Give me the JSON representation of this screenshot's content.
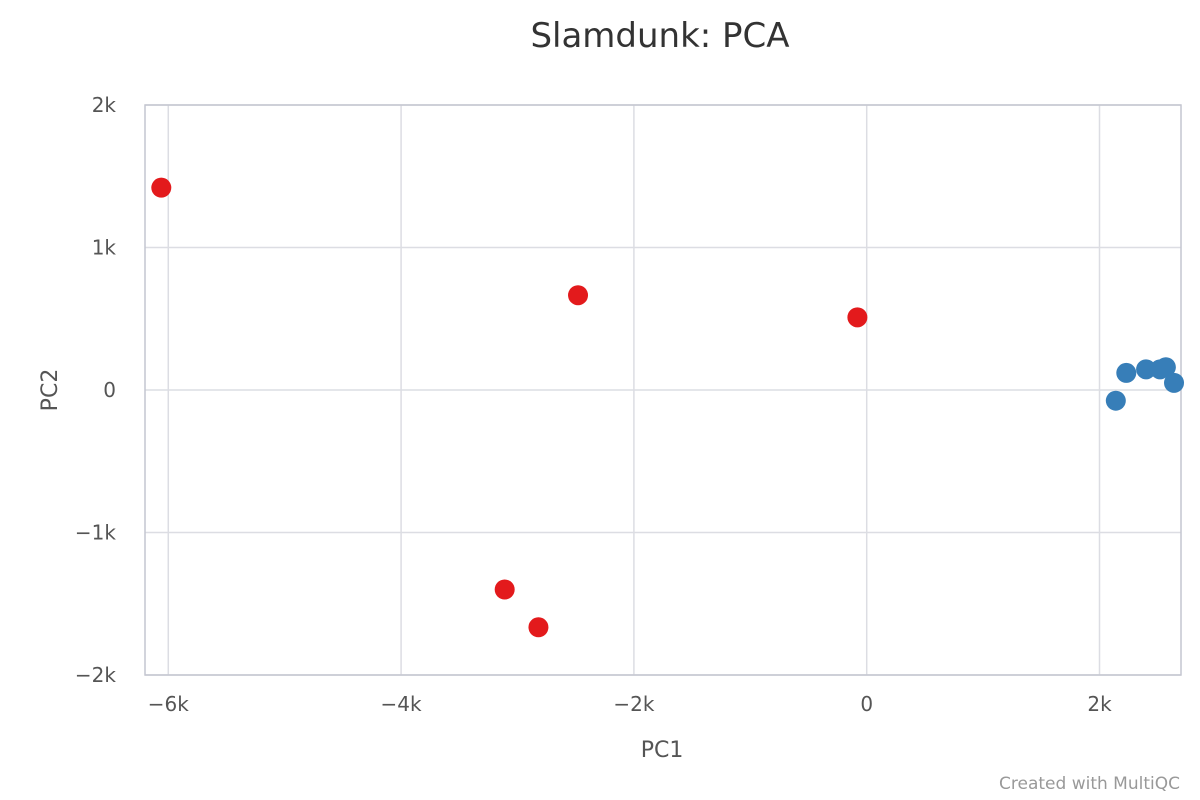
{
  "chart_data": {
    "type": "scatter",
    "title": "Slamdunk: PCA",
    "xlabel": "PC1",
    "ylabel": "PC2",
    "xlim": [
      -6200,
      2700
    ],
    "ylim": [
      -2000,
      2000
    ],
    "grid": true,
    "x_ticks": [
      {
        "value": -6000,
        "label": "−6k"
      },
      {
        "value": -4000,
        "label": "−4k"
      },
      {
        "value": -2000,
        "label": "−2k"
      },
      {
        "value": 0,
        "label": "0"
      },
      {
        "value": 2000,
        "label": "2k"
      }
    ],
    "y_ticks": [
      {
        "value": 2000,
        "label": "2k"
      },
      {
        "value": 1000,
        "label": "1k"
      },
      {
        "value": 0,
        "label": "0"
      },
      {
        "value": -1000,
        "label": "−1k"
      },
      {
        "value": -2000,
        "label": "−2k"
      }
    ],
    "series": [
      {
        "color": "#e31a1c",
        "points": [
          {
            "x": -6060,
            "y": 1420
          },
          {
            "x": -2480,
            "y": 665
          },
          {
            "x": -80,
            "y": 510
          },
          {
            "x": -3110,
            "y": -1400
          },
          {
            "x": -2820,
            "y": -1665
          }
        ]
      },
      {
        "color": "#377eb8",
        "points": [
          {
            "x": 2140,
            "y": -75
          },
          {
            "x": 2230,
            "y": 120
          },
          {
            "x": 2400,
            "y": 145
          },
          {
            "x": 2520,
            "y": 145
          },
          {
            "x": 2570,
            "y": 160
          },
          {
            "x": 2640,
            "y": 50
          }
        ]
      }
    ]
  },
  "credit": "Created with MultiQC"
}
